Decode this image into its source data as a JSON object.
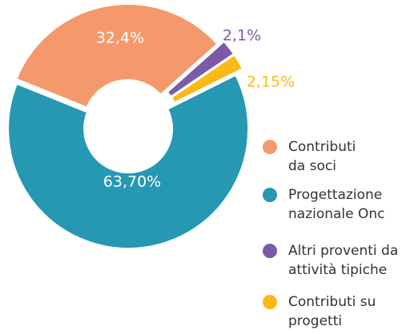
{
  "chart_data": {
    "type": "pie",
    "categories": [
      "Contributi da soci",
      "Progettazione nazionale Onc",
      "Altri proventi da attività tipiche",
      "Contributi su progetti"
    ],
    "order": [
      0,
      2,
      3,
      1
    ],
    "values": [
      32.4,
      63.7,
      2.1,
      2.15
    ],
    "value_labels": [
      "32,4%",
      "63,70%",
      "2,1%",
      "2,15%"
    ],
    "colors": [
      "#f4996b",
      "#2698b2",
      "#7b5ba6",
      "#fcb916"
    ],
    "donut": true
  }
}
